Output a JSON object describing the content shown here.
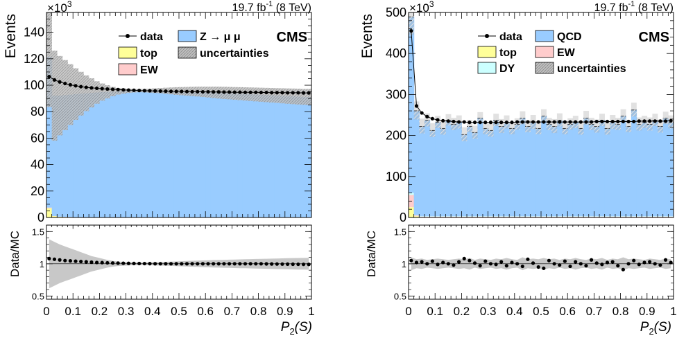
{
  "chart_data": [
    {
      "type": "stacked-histogram-with-ratio",
      "panel": "left",
      "lumi": "19.7 fb",
      "lumi_sup": "-1",
      "lumi_energy": "(8 TeV)",
      "experiment": "CMS",
      "ylabel": "Events",
      "y_exponent": "×10",
      "y_exponent_sup": "3",
      "xlabel_main": "P",
      "xlabel_sub": "2",
      "xlabel_arg": "(S)",
      "ratio_ylabel": "Data/MC",
      "xlim": [
        0,
        1
      ],
      "ylim": [
        0,
        155
      ],
      "ratio_ylim": [
        0.45,
        1.6
      ],
      "x_ticks": [
        "0",
        "0.1",
        "0.2",
        "0.3",
        "0.4",
        "0.5",
        "0.6",
        "0.7",
        "0.8",
        "0.9",
        "1"
      ],
      "y_ticks": [
        "0",
        "20",
        "40",
        "60",
        "80",
        "100",
        "120",
        "140"
      ],
      "ratio_ticks": [
        "0.5",
        "1",
        "1.5"
      ],
      "legend": [
        {
          "label": "data",
          "kind": "data"
        },
        {
          "label": "Z → μ μ",
          "kind": "fill",
          "color": "#99ccff"
        },
        {
          "label": "top",
          "kind": "fill",
          "color": "#ffff99"
        },
        {
          "label": "uncertainties",
          "kind": "hatch"
        },
        {
          "label": "EW",
          "kind": "fill",
          "color": "#ffcccc"
        }
      ],
      "colors": {
        "main": "#99ccff",
        "top": "#ffff99",
        "ew": "#ffcccc",
        "unc": "#b8b8b8"
      },
      "data_x": [
        0.01,
        0.03,
        0.05,
        0.07,
        0.09,
        0.11,
        0.13,
        0.15,
        0.17,
        0.19,
        0.21,
        0.23,
        0.25,
        0.27,
        0.29,
        0.31,
        0.33,
        0.35,
        0.37,
        0.39,
        0.41,
        0.43,
        0.45,
        0.47,
        0.49,
        0.51,
        0.53,
        0.55,
        0.57,
        0.59,
        0.61,
        0.63,
        0.65,
        0.67,
        0.69,
        0.71,
        0.73,
        0.75,
        0.77,
        0.79,
        0.81,
        0.83,
        0.85,
        0.87,
        0.89,
        0.91,
        0.93,
        0.95,
        0.97,
        0.99
      ],
      "data_values": [
        106.5,
        104.0,
        102.5,
        101.3,
        100.3,
        99.6,
        98.9,
        98.4,
        98.0,
        97.7,
        97.4,
        97.1,
        96.9,
        96.7,
        96.5,
        96.3,
        96.2,
        96.0,
        95.9,
        95.8,
        95.7,
        95.6,
        95.5,
        95.4,
        95.3,
        95.3,
        95.2,
        95.1,
        95.1,
        95.0,
        95.0,
        94.9,
        94.9,
        94.8,
        94.8,
        94.7,
        94.7,
        94.6,
        94.6,
        94.6,
        94.5,
        94.5,
        94.4,
        94.4,
        94.4,
        94.3,
        94.3,
        94.3,
        94.2,
        94.2
      ],
      "mc_values": [
        114.0,
        91.0,
        91.5,
        92.0,
        92.5,
        93.0,
        93.3,
        93.6,
        93.9,
        94.2,
        94.5,
        94.7,
        94.9,
        95.1,
        95.3,
        95.4,
        95.5,
        95.6,
        95.6,
        95.6,
        95.6,
        95.6,
        95.5,
        95.4,
        95.3,
        95.2,
        95.1,
        95.0,
        94.9,
        94.7,
        94.5,
        94.3,
        94.1,
        93.9,
        93.7,
        93.5,
        93.3,
        93.1,
        92.9,
        92.7,
        92.5,
        92.3,
        92.1,
        91.9,
        91.7,
        91.5,
        91.3,
        91.1,
        90.9,
        90.8
      ],
      "top_values": [
        7.0,
        1.0,
        0.5,
        0.4,
        0.3,
        0.2,
        0.2,
        0.2,
        0.2,
        0.2,
        0.2,
        0.2,
        0.2,
        0.2,
        0.2,
        0.2,
        0.2,
        0.2,
        0.2,
        0.2,
        0.2,
        0.2,
        0.2,
        0.2,
        0.2,
        0.2,
        0.2,
        0.2,
        0.2,
        0.2,
        0.2,
        0.2,
        0.2,
        0.2,
        0.2,
        0.2,
        0.2,
        0.2,
        0.2,
        0.2,
        0.2,
        0.2,
        0.2,
        0.2,
        0.2,
        0.2,
        0.2,
        0.2,
        0.2,
        0.2
      ],
      "ew_values": [
        0.5,
        0.1,
        0.1,
        0.1,
        0.1,
        0.1,
        0.1,
        0.1,
        0.1,
        0.1,
        0.1,
        0.1,
        0.1,
        0.1,
        0.1,
        0.1,
        0.1,
        0.1,
        0.1,
        0.1,
        0.1,
        0.1,
        0.1,
        0.1,
        0.1,
        0.1,
        0.1,
        0.1,
        0.1,
        0.1,
        0.1,
        0.1,
        0.1,
        0.1,
        0.1,
        0.1,
        0.1,
        0.1,
        0.1,
        0.1,
        0.1,
        0.1,
        0.1,
        0.1,
        0.1,
        0.1,
        0.1,
        0.1,
        0.1,
        0.1
      ],
      "unc_values": [
        38.0,
        34.0,
        30.0,
        26.5,
        23.0,
        19.5,
        16.5,
        13.5,
        11.0,
        8.5,
        6.5,
        5.0,
        3.5,
        2.5,
        2.0,
        1.5,
        1.3,
        1.2,
        1.3,
        1.5,
        1.8,
        2.0,
        2.3,
        2.6,
        2.9,
        3.1,
        3.3,
        3.5,
        3.7,
        3.9,
        4.1,
        4.3,
        4.5,
        4.6,
        4.7,
        4.8,
        4.9,
        5.0,
        5.1,
        5.2,
        5.3,
        5.4,
        5.5,
        5.6,
        5.7,
        5.8,
        5.9,
        6.0,
        6.0,
        6.1
      ],
      "ratio_values": [
        1.08,
        1.07,
        1.06,
        1.05,
        1.045,
        1.04,
        1.035,
        1.03,
        1.025,
        1.02,
        1.018,
        1.015,
        1.012,
        1.01,
        1.008,
        1.006,
        1.005,
        1.004,
        1.003,
        1.002,
        1.001,
        1.0,
        1.0,
        1.0,
        1.0,
        1.0,
        1.0,
        1.0,
        1.0,
        1.0,
        1.0,
        1.0,
        1.0,
        1.0,
        1.0,
        1.0,
        1.0,
        1.0,
        1.0,
        1.0,
        1.0,
        0.998,
        0.997,
        0.996,
        0.995,
        0.994,
        0.993,
        0.992,
        0.991,
        0.99
      ],
      "ratio_unc": [
        0.38,
        0.34,
        0.3,
        0.27,
        0.24,
        0.21,
        0.18,
        0.15,
        0.12,
        0.1,
        0.08,
        0.06,
        0.045,
        0.035,
        0.03,
        0.025,
        0.02,
        0.02,
        0.02,
        0.022,
        0.025,
        0.028,
        0.03,
        0.033,
        0.036,
        0.04,
        0.043,
        0.046,
        0.049,
        0.052,
        0.055,
        0.058,
        0.06,
        0.062,
        0.064,
        0.066,
        0.068,
        0.07,
        0.072,
        0.074,
        0.076,
        0.078,
        0.08,
        0.082,
        0.084,
        0.086,
        0.088,
        0.09,
        0.091,
        0.092
      ]
    },
    {
      "type": "stacked-histogram-with-ratio",
      "panel": "right",
      "lumi": "19.7 fb",
      "lumi_sup": "-1",
      "lumi_energy": "(8 TeV)",
      "experiment": "CMS",
      "ylabel": "Events",
      "y_exponent": "×10",
      "y_exponent_sup": "3",
      "xlabel_main": "P",
      "xlabel_sub": "2",
      "xlabel_arg": "(S)",
      "ratio_ylabel": "Data/MC",
      "xlim": [
        0,
        1
      ],
      "ylim": [
        0,
        500
      ],
      "ratio_ylim": [
        0.45,
        1.6
      ],
      "x_ticks": [
        "0",
        "0.1",
        "0.2",
        "0.3",
        "0.4",
        "0.5",
        "0.6",
        "0.7",
        "0.8",
        "0.9",
        "1"
      ],
      "y_ticks": [
        "0",
        "100",
        "200",
        "300",
        "400",
        "500"
      ],
      "ratio_ticks": [
        "0.5",
        "1",
        "1.5"
      ],
      "legend": [
        {
          "label": "data",
          "kind": "data"
        },
        {
          "label": "QCD",
          "kind": "fill",
          "color": "#99ccff"
        },
        {
          "label": "top",
          "kind": "fill",
          "color": "#ffff99"
        },
        {
          "label": "EW",
          "kind": "fill",
          "color": "#ffcccc"
        },
        {
          "label": "DY",
          "kind": "fill",
          "color": "#ccffff"
        },
        {
          "label": "uncertainties",
          "kind": "hatch"
        }
      ],
      "colors": {
        "main": "#99ccff",
        "top": "#ffff99",
        "ew": "#ffcccc",
        "dy": "#ccffff",
        "unc": "#b8b8b8"
      },
      "data_x": [
        0.01,
        0.03,
        0.05,
        0.07,
        0.09,
        0.11,
        0.13,
        0.15,
        0.17,
        0.19,
        0.21,
        0.23,
        0.25,
        0.27,
        0.29,
        0.31,
        0.33,
        0.35,
        0.37,
        0.39,
        0.41,
        0.43,
        0.45,
        0.47,
        0.49,
        0.51,
        0.53,
        0.55,
        0.57,
        0.59,
        0.61,
        0.63,
        0.65,
        0.67,
        0.69,
        0.71,
        0.73,
        0.75,
        0.77,
        0.79,
        0.81,
        0.83,
        0.85,
        0.87,
        0.89,
        0.91,
        0.93,
        0.95,
        0.97,
        0.99
      ],
      "data_values": [
        455,
        272,
        255,
        246,
        241,
        238,
        236,
        235,
        234,
        233,
        233,
        232,
        232,
        232,
        232,
        232,
        232,
        232,
        232,
        232,
        233,
        233,
        233,
        233,
        233,
        233,
        233,
        233,
        233,
        233,
        233,
        233,
        233,
        233,
        233,
        234,
        234,
        234,
        234,
        234,
        234,
        234,
        234,
        235,
        235,
        235,
        235,
        235,
        235,
        236
      ],
      "mc_values": [
        430,
        255,
        220,
        235,
        210,
        230,
        215,
        235,
        225,
        230,
        200,
        220,
        205,
        240,
        215,
        210,
        235,
        220,
        230,
        215,
        225,
        240,
        220,
        230,
        215,
        245,
        225,
        220,
        235,
        215,
        225,
        230,
        215,
        240,
        225,
        220,
        235,
        215,
        230,
        225,
        245,
        220,
        260,
        225,
        230,
        225,
        235,
        220,
        240,
        230
      ],
      "top_values": [
        25,
        3,
        1,
        1,
        1,
        1,
        1,
        1,
        1,
        1,
        1,
        1,
        1,
        1,
        1,
        1,
        1,
        1,
        1,
        1,
        1,
        1,
        1,
        1,
        1,
        1,
        1,
        1,
        1,
        1,
        1,
        1,
        1,
        1,
        1,
        1,
        1,
        1,
        1,
        1,
        1,
        1,
        1,
        1,
        1,
        1,
        1,
        1,
        1,
        1
      ],
      "ew_values": [
        30,
        2,
        1,
        1,
        1,
        1,
        1,
        1,
        1,
        1,
        1,
        1,
        1,
        1,
        1,
        1,
        1,
        1,
        1,
        1,
        1,
        1,
        1,
        1,
        1,
        1,
        1,
        1,
        1,
        1,
        1,
        1,
        1,
        1,
        1,
        1,
        1,
        1,
        1,
        1,
        1,
        1,
        1,
        1,
        1,
        1,
        1,
        1,
        1,
        1
      ],
      "dy_values": [
        5,
        1,
        1,
        1,
        1,
        1,
        1,
        1,
        1,
        1,
        1,
        1,
        1,
        1,
        1,
        1,
        1,
        1,
        1,
        1,
        1,
        1,
        1,
        1,
        1,
        1,
        1,
        1,
        1,
        1,
        1,
        1,
        1,
        1,
        1,
        1,
        1,
        1,
        1,
        1,
        1,
        1,
        1,
        1,
        1,
        1,
        1,
        1,
        1,
        1
      ],
      "unc_values": [
        45,
        22,
        18,
        16,
        17,
        15,
        16,
        14,
        15,
        16,
        17,
        15,
        16,
        14,
        15,
        16,
        15,
        17,
        16,
        15,
        14,
        16,
        15,
        17,
        15,
        16,
        15,
        17,
        16,
        15,
        14,
        15,
        16,
        17,
        15,
        16,
        15,
        16,
        17,
        15,
        16,
        15,
        17,
        16,
        15,
        16,
        15,
        16,
        15,
        16
      ],
      "ratio_values": [
        1.05,
        1.02,
        1.03,
        1.0,
        1.04,
        0.99,
        1.02,
        1.0,
        0.98,
        1.03,
        1.08,
        1.05,
        1.01,
        0.97,
        1.04,
        1.0,
        0.99,
        1.03,
        0.97,
        1.02,
        1.0,
        0.96,
        1.07,
        1.01,
        0.95,
        0.93,
        1.05,
        1.0,
        0.98,
        1.04,
        0.96,
        1.03,
        1.0,
        0.97,
        1.06,
        1.01,
        0.99,
        1.02,
        1.03,
        0.97,
        0.91,
        1.0,
        1.05,
        0.99,
        1.02,
        1.03,
        1.0,
        0.98,
        1.06,
        1.02
      ],
      "ratio_unc": [
        0.1,
        0.07,
        0.08,
        0.06,
        0.07,
        0.08,
        0.07,
        0.06,
        0.07,
        0.08,
        0.07,
        0.09,
        0.06,
        0.08,
        0.07,
        0.06,
        0.08,
        0.07,
        0.09,
        0.07,
        0.06,
        0.1,
        0.07,
        0.08,
        0.07,
        0.09,
        0.07,
        0.08,
        0.06,
        0.08,
        0.07,
        0.09,
        0.07,
        0.06,
        0.08,
        0.07,
        0.09,
        0.06,
        0.08,
        0.07,
        0.1,
        0.07,
        0.08,
        0.07,
        0.06,
        0.08,
        0.07,
        0.06,
        0.08,
        0.07
      ]
    }
  ]
}
